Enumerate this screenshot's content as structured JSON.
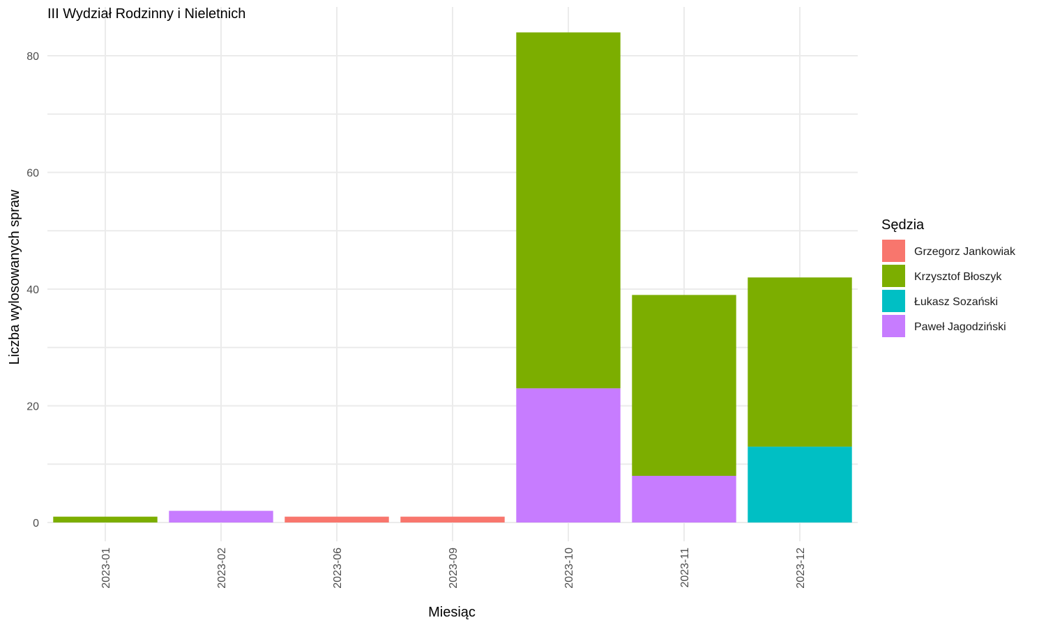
{
  "chart_data": {
    "type": "bar",
    "stacked": true,
    "title": "III Wydział Rodzinny i Nieletnich",
    "xlabel": "Miesiąc",
    "ylabel": "Liczba wylosowanych spraw",
    "ylim": [
      0,
      86
    ],
    "yticks": [
      0,
      20,
      40,
      60,
      80
    ],
    "grid": true,
    "legend_position": "right",
    "legend_title": "Sędzia",
    "categories": [
      "2023-01",
      "2023-02",
      "2023-06",
      "2023-09",
      "2023-10",
      "2023-11",
      "2023-12"
    ],
    "series": [
      {
        "name": "Grzegorz Jankowiak",
        "color": "#F8766D",
        "values": [
          0,
          0,
          1,
          1,
          0,
          0,
          0
        ]
      },
      {
        "name": "Krzysztof Błoszyk",
        "color": "#7CAE00",
        "values": [
          1,
          0,
          0,
          0,
          61,
          31,
          29
        ]
      },
      {
        "name": "Łukasz Sozański",
        "color": "#00BFC4",
        "values": [
          0,
          0,
          0,
          0,
          0,
          0,
          13
        ]
      },
      {
        "name": "Paweł Jagodziński",
        "color": "#C77CFF",
        "values": [
          0,
          2,
          0,
          0,
          23,
          8,
          0
        ]
      }
    ],
    "stack_order_bottom_to_top": [
      "Łukasz Sozański",
      "Paweł Jagodziński",
      "Grzegorz Jankowiak",
      "Krzysztof Błoszyk"
    ]
  }
}
